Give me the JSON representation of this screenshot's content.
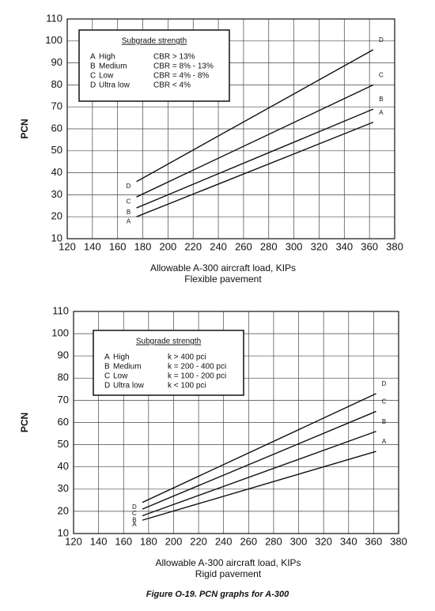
{
  "chart_data": [
    {
      "type": "line",
      "y_label": "PCN",
      "x_label": "Allowable A-300 aircraft load, KIPs",
      "subtitle": "Flexible pavement",
      "legend_title": "Subgrade strength",
      "x": [
        175,
        363
      ],
      "series": [
        {
          "name": "A",
          "description": "High",
          "criterion": "CBR > 13%",
          "color": "#111111",
          "values": [
            20,
            63
          ]
        },
        {
          "name": "B",
          "description": "Medium",
          "criterion": "CBR = 8% - 13%",
          "color": "#111111",
          "values": [
            24,
            69
          ]
        },
        {
          "name": "C",
          "description": "Low",
          "criterion": "CBR = 4% - 8%",
          "color": "#111111",
          "values": [
            29,
            80
          ]
        },
        {
          "name": "D",
          "description": "Ultra low",
          "criterion": "CBR < 4%",
          "color": "#111111",
          "values": [
            36,
            96
          ]
        }
      ],
      "xlim": [
        120,
        380
      ],
      "xticks": [
        120,
        140,
        160,
        180,
        200,
        220,
        240,
        260,
        280,
        300,
        320,
        340,
        360,
        380
      ],
      "ylim": [
        10,
        110
      ],
      "yticks": [
        10,
        20,
        30,
        40,
        50,
        60,
        70,
        80,
        90,
        100,
        110
      ],
      "grid": true
    },
    {
      "type": "line",
      "y_label": "PCN",
      "x_label": "Allowable A-300 aircraft load, KIPs",
      "subtitle": "Rigid pavement",
      "legend_title": "Subgrade strength",
      "x": [
        175,
        362
      ],
      "series": [
        {
          "name": "A",
          "description": "High",
          "criterion": "k > 400 pci",
          "color": "#111111",
          "values": [
            16,
            47
          ]
        },
        {
          "name": "B",
          "description": "Medium",
          "criterion": "k = 200 - 400 pci",
          "color": "#111111",
          "values": [
            18,
            56
          ]
        },
        {
          "name": "C",
          "description": "Low",
          "criterion": "k = 100 - 200 pci",
          "color": "#111111",
          "values": [
            21,
            65
          ]
        },
        {
          "name": "D",
          "description": "Ultra low",
          "criterion": "k < 100 pci",
          "color": "#111111",
          "values": [
            24,
            73
          ]
        }
      ],
      "xlim": [
        120,
        380
      ],
      "xticks": [
        120,
        140,
        160,
        180,
        200,
        220,
        240,
        260,
        280,
        300,
        320,
        340,
        360,
        380
      ],
      "ylim": [
        10,
        110
      ],
      "yticks": [
        10,
        20,
        30,
        40,
        50,
        60,
        70,
        80,
        90,
        100,
        110
      ],
      "grid": true
    }
  ],
  "caption": "Figure O-19.  PCN graphs for A-300"
}
